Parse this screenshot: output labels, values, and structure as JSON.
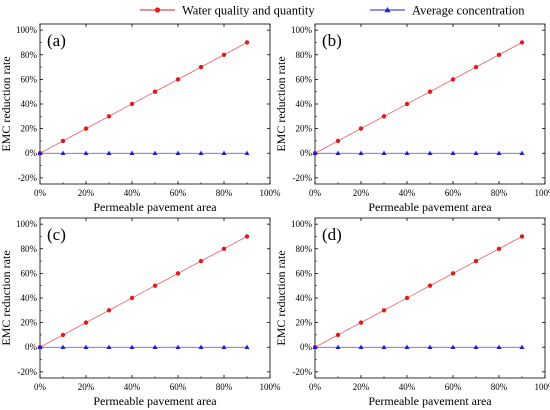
{
  "legend": {
    "placement": "top-center",
    "entries": [
      {
        "name": "Water quality and quantity",
        "color": "#e31a1c",
        "marker": "circle"
      },
      {
        "name": "Average concentration",
        "color": "#1f1fd6",
        "marker": "triangle"
      }
    ]
  },
  "chart_data": [
    {
      "type": "line",
      "panel_label": "(a)",
      "xlabel": "Permeable pavement area",
      "ylabel": "EMC reduction rate",
      "xlim": [
        0,
        100
      ],
      "ylim": [
        -25,
        105
      ],
      "x_ticks": [
        "0%",
        "20%",
        "40%",
        "60%",
        "80%",
        "100%"
      ],
      "y_ticks": [
        "-20%",
        "0%",
        "20%",
        "40%",
        "60%",
        "80%",
        "100%"
      ],
      "grid": false,
      "x": [
        0,
        10,
        20,
        30,
        40,
        50,
        60,
        70,
        80,
        90
      ],
      "series": [
        {
          "name": "Water quality and quantity",
          "values": [
            0,
            10,
            20,
            30,
            40,
            50,
            60,
            70,
            80,
            90
          ]
        },
        {
          "name": "Average concentration",
          "values": [
            0,
            0,
            0,
            0,
            0,
            0,
            0,
            0,
            0,
            0
          ]
        }
      ]
    },
    {
      "type": "line",
      "panel_label": "(b)",
      "xlabel": "Permeable pavement area",
      "ylabel": "EMC reduction rate",
      "xlim": [
        0,
        100
      ],
      "ylim": [
        -25,
        105
      ],
      "x_ticks": [
        "0%",
        "20%",
        "40%",
        "60%",
        "80%",
        "100%"
      ],
      "y_ticks": [
        "-20%",
        "0%",
        "20%",
        "40%",
        "60%",
        "80%",
        "100%"
      ],
      "grid": false,
      "x": [
        0,
        10,
        20,
        30,
        40,
        50,
        60,
        70,
        80,
        90
      ],
      "series": [
        {
          "name": "Water quality and quantity",
          "values": [
            0,
            10,
            20,
            30,
            40,
            50,
            60,
            70,
            80,
            90
          ]
        },
        {
          "name": "Average concentration",
          "values": [
            0,
            0,
            0,
            0,
            0,
            0,
            0,
            0,
            0,
            0
          ]
        }
      ]
    },
    {
      "type": "line",
      "panel_label": "(c)",
      "xlabel": "Permeable pavement area",
      "ylabel": "EMC reduction rate",
      "xlim": [
        0,
        100
      ],
      "ylim": [
        -25,
        105
      ],
      "x_ticks": [
        "0%",
        "20%",
        "40%",
        "60%",
        "80%",
        "100%"
      ],
      "y_ticks": [
        "-20%",
        "0%",
        "20%",
        "40%",
        "60%",
        "80%",
        "100%"
      ],
      "grid": false,
      "x": [
        0,
        10,
        20,
        30,
        40,
        50,
        60,
        70,
        80,
        90
      ],
      "series": [
        {
          "name": "Water quality and quantity",
          "values": [
            0,
            10,
            20,
            30,
            40,
            50,
            60,
            70,
            80,
            90
          ]
        },
        {
          "name": "Average concentration",
          "values": [
            0,
            0,
            0,
            0,
            0,
            0,
            0,
            0,
            0,
            0
          ]
        }
      ]
    },
    {
      "type": "line",
      "panel_label": "(d)",
      "xlabel": "Permeable pavement area",
      "ylabel": "EMC reduction rate",
      "xlim": [
        0,
        100
      ],
      "ylim": [
        -25,
        105
      ],
      "x_ticks": [
        "0%",
        "20%",
        "40%",
        "60%",
        "80%",
        "100%"
      ],
      "y_ticks": [
        "-20%",
        "0%",
        "20%",
        "40%",
        "60%",
        "80%",
        "100%"
      ],
      "grid": false,
      "x": [
        0,
        10,
        20,
        30,
        40,
        50,
        60,
        70,
        80,
        90
      ],
      "series": [
        {
          "name": "Water quality and quantity",
          "values": [
            0,
            10,
            20,
            30,
            40,
            50,
            60,
            70,
            80,
            90
          ]
        },
        {
          "name": "Average concentration",
          "values": [
            0,
            0,
            0,
            0,
            0,
            0,
            0,
            0,
            0,
            0
          ]
        }
      ]
    }
  ]
}
